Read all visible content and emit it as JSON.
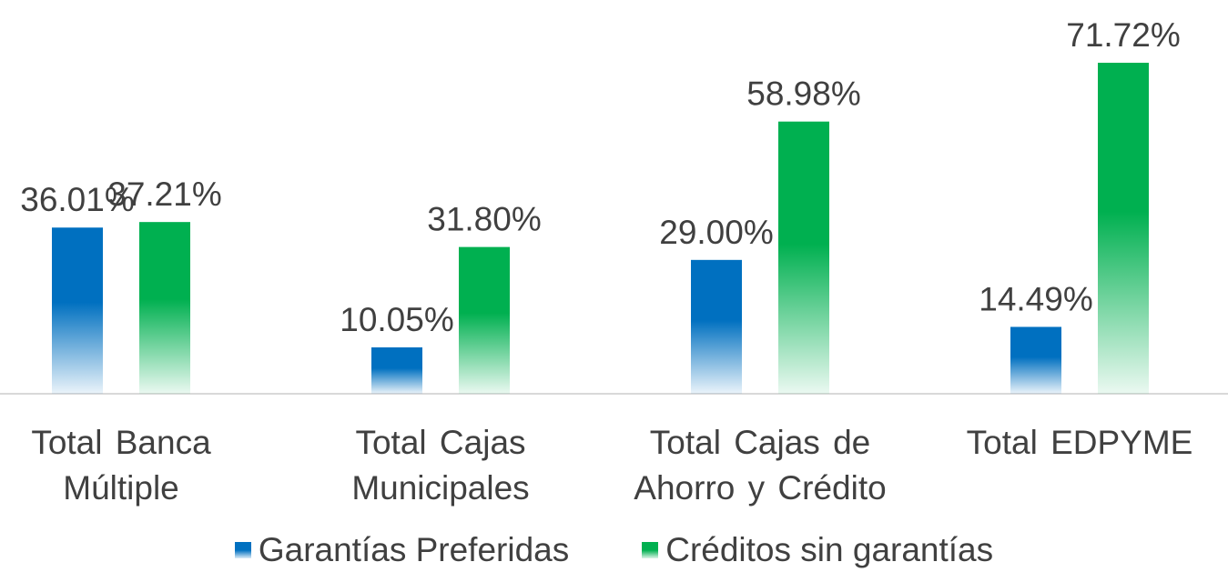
{
  "chart_data": {
    "type": "bar",
    "categories": [
      "Total Banca Múltiple",
      "Total Cajas Municipales",
      "Total Cajas de Ahorro y Crédito",
      "Total EDPYME"
    ],
    "series": [
      {
        "name": "Garantías Preferidas",
        "color": "#0070c0",
        "values": [
          36.01,
          10.05,
          29.0,
          14.49
        ],
        "value_labels": [
          "36.01%",
          "10.05%",
          "29.00%",
          "14.49%"
        ]
      },
      {
        "name": "Créditos sin garantías",
        "color": "#00b050",
        "values": [
          37.21,
          31.8,
          58.98,
          71.72
        ],
        "value_labels": [
          "37.21%",
          "31.80%",
          "58.98%",
          "71.72%"
        ]
      }
    ],
    "ylim": [
      0,
      80
    ],
    "legend": "bottom"
  }
}
